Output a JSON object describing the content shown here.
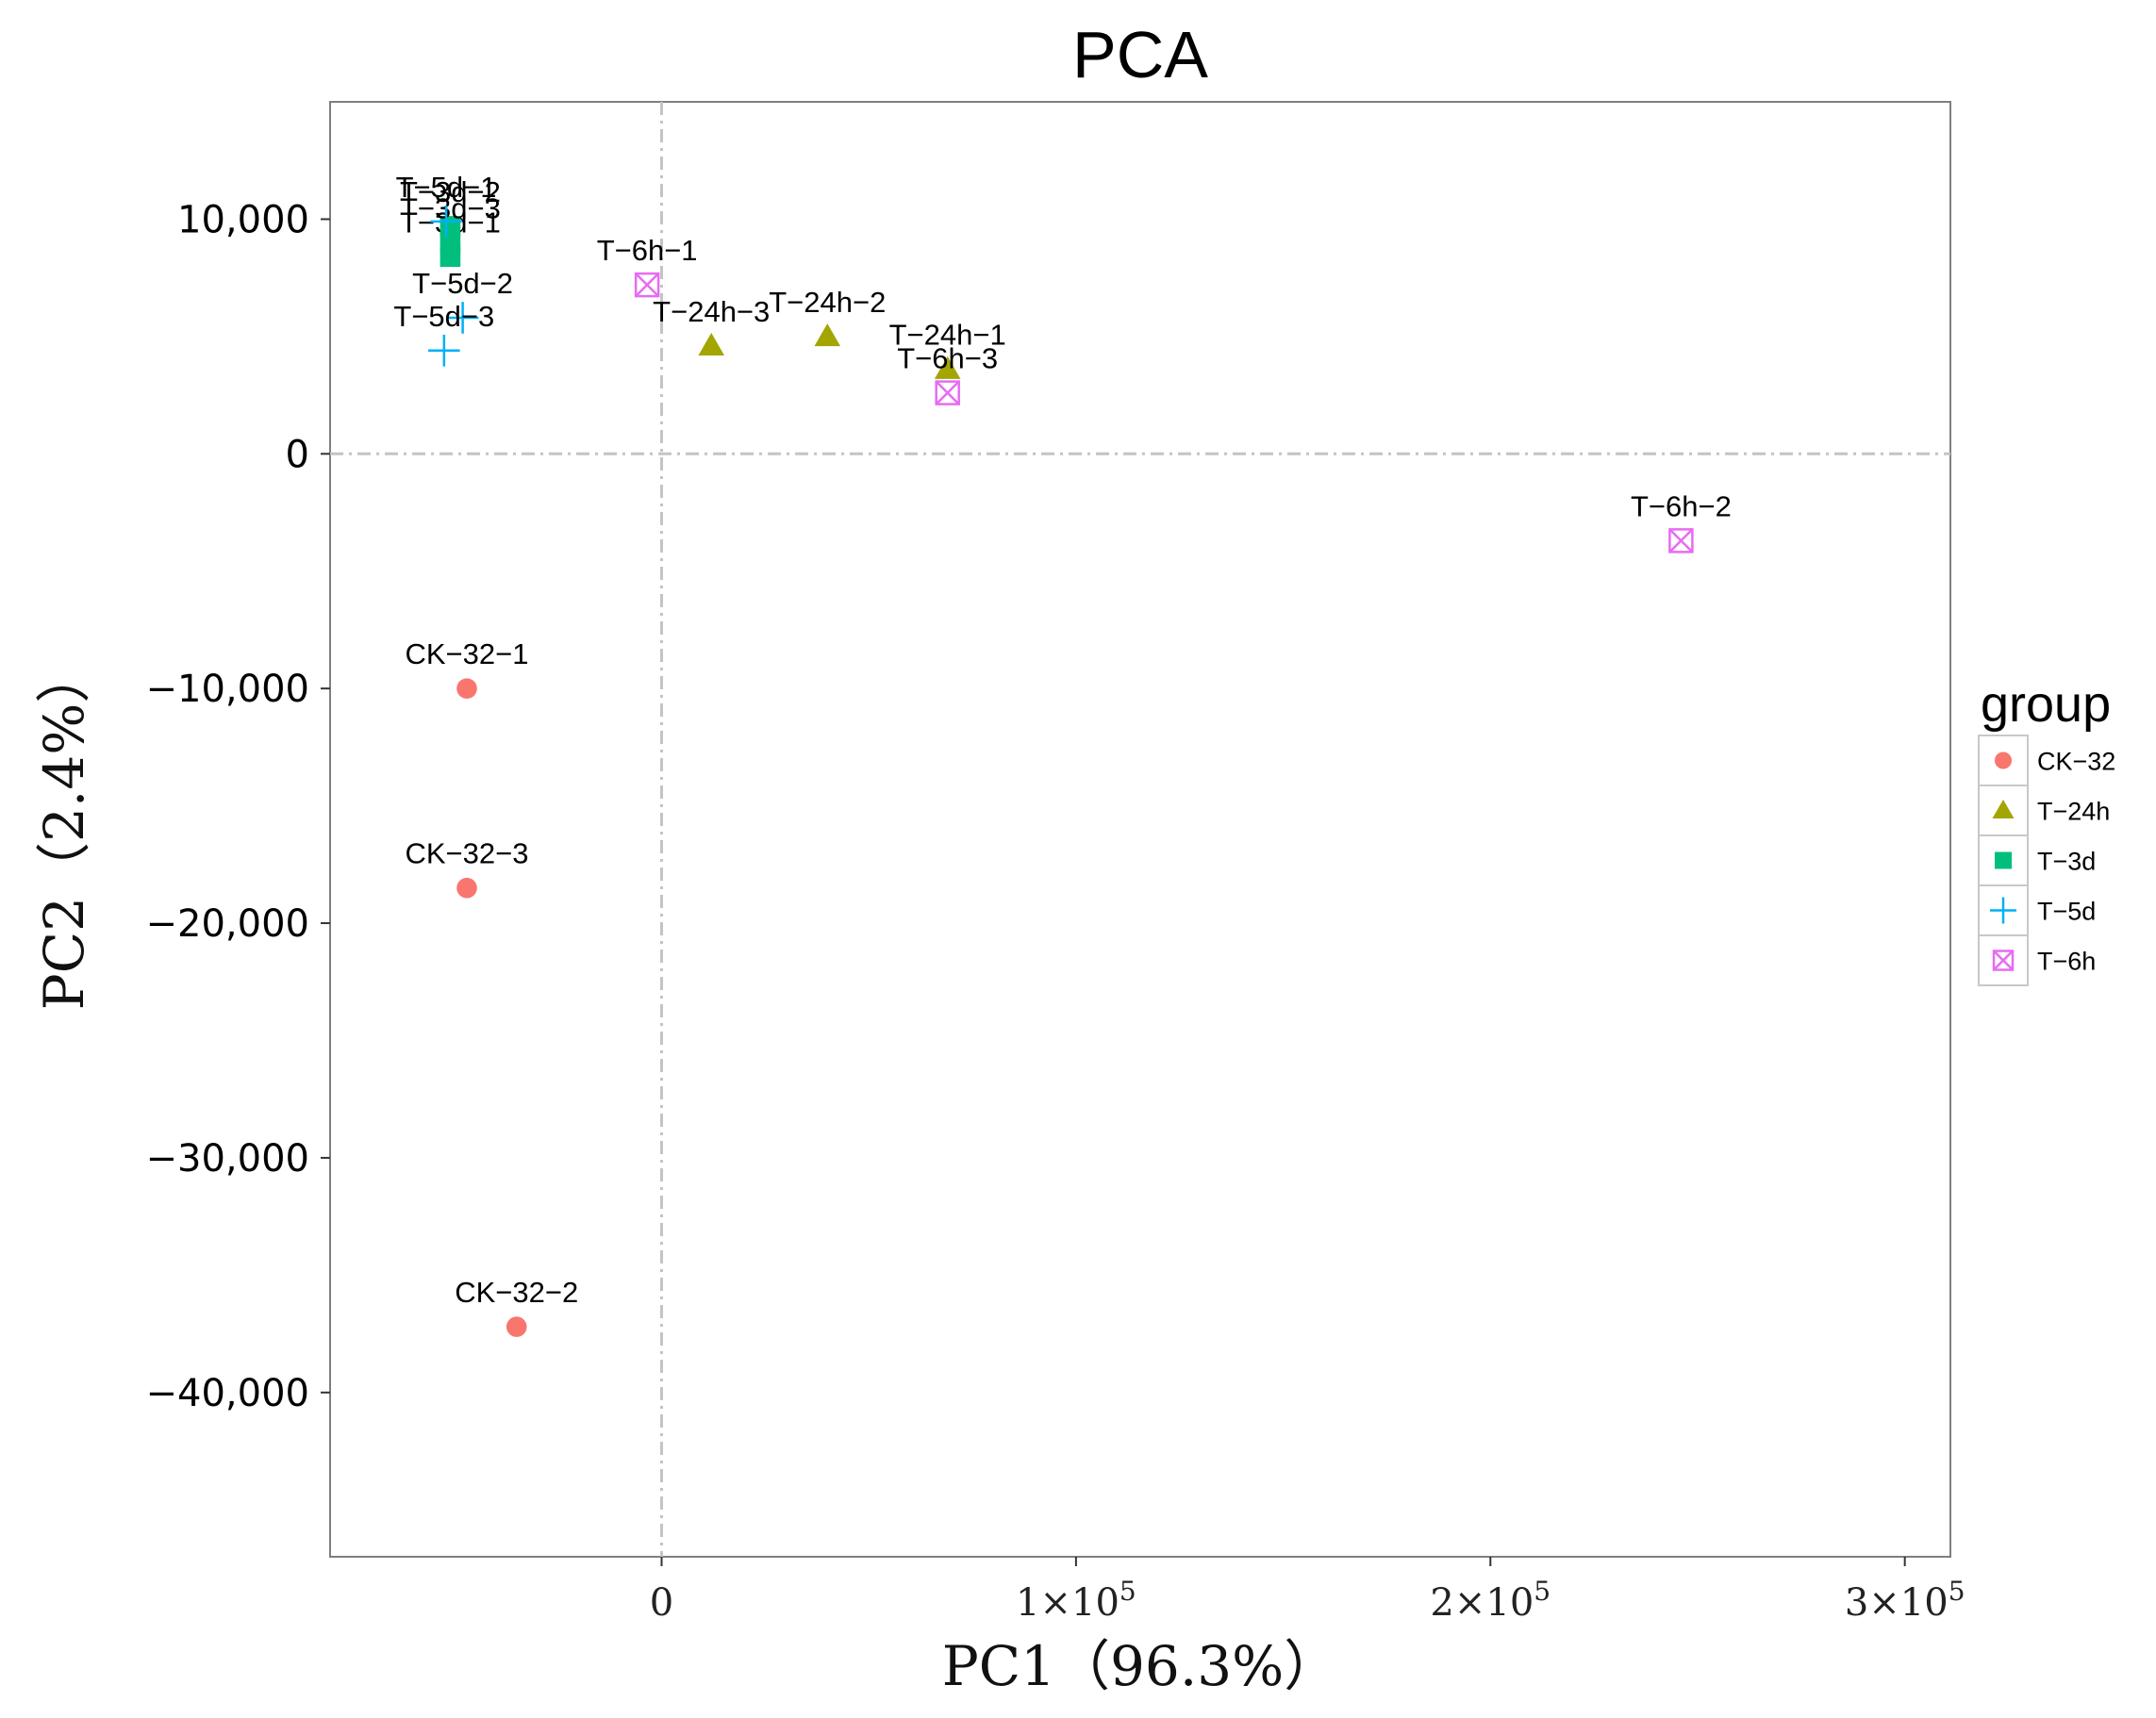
{
  "chart_data": {
    "type": "scatter",
    "title": "PCA",
    "xlabel": "PC1（96.3%）",
    "ylabel": "PC2（2.4%）",
    "xlim": [
      -80000,
      311000
    ],
    "ylim": [
      -47000,
      15000
    ],
    "x_ticks": [
      {
        "value": 0,
        "label": "0",
        "exp": ""
      },
      {
        "value": 100000,
        "label": "1×10",
        "exp": "5"
      },
      {
        "value": 200000,
        "label": "2×10",
        "exp": "5"
      },
      {
        "value": 300000,
        "label": "3×10",
        "exp": "5"
      }
    ],
    "y_ticks": [
      {
        "value": 10000,
        "label": "10,000"
      },
      {
        "value": 0,
        "label": "0"
      },
      {
        "value": -10000,
        "label": "−10,000"
      },
      {
        "value": -20000,
        "label": "−20,000"
      },
      {
        "value": -30000,
        "label": "−30,000"
      },
      {
        "value": -40000,
        "label": "−40,000"
      }
    ],
    "reference_lines": {
      "x": 0,
      "y": 0,
      "style": "dash-dot"
    },
    "grid": false,
    "legend": {
      "title": "group",
      "position": "right"
    },
    "series": [
      {
        "name": "CK-32",
        "color": "#F8766D",
        "shape": "circle",
        "points": [
          {
            "x": -47000,
            "y": -10000,
            "label": "CK−32−1"
          },
          {
            "x": -35000,
            "y": -37200,
            "label": "CK−32−2"
          },
          {
            "x": -47000,
            "y": -18500,
            "label": "CK−32−3"
          }
        ]
      },
      {
        "name": "T-24h",
        "color": "#A3A500",
        "shape": "triangle",
        "points": [
          {
            "x": 69000,
            "y": 3600,
            "label": "T−24h−1"
          },
          {
            "x": 40000,
            "y": 5000,
            "label": "T−24h−2"
          },
          {
            "x": 12000,
            "y": 4600,
            "label": "T−24h−3"
          }
        ]
      },
      {
        "name": "T-3d",
        "color": "#00BF7D",
        "shape": "square",
        "points": [
          {
            "x": -51000,
            "y": 8400,
            "label": "T−3d−1"
          },
          {
            "x": -51000,
            "y": 9700,
            "label": "T−3d−2"
          },
          {
            "x": -51000,
            "y": 9000,
            "label": "T−3d−3"
          }
        ]
      },
      {
        "name": "T-5d",
        "color": "#00B0F6",
        "shape": "plus",
        "points": [
          {
            "x": -52000,
            "y": 9900,
            "label": "T−5d−1"
          },
          {
            "x": -48000,
            "y": 5800,
            "label": "T−5d−2"
          },
          {
            "x": -52500,
            "y": 4400,
            "label": "T−5d−3"
          }
        ]
      },
      {
        "name": "T-6h",
        "color": "#E76BF3",
        "shape": "square-x",
        "points": [
          {
            "x": -3500,
            "y": 7200,
            "label": "T−6h−1"
          },
          {
            "x": 246000,
            "y": -3700,
            "label": "T−6h−2"
          },
          {
            "x": 69000,
            "y": 2600,
            "label": "T−6h−3"
          }
        ]
      }
    ],
    "legend_labels": [
      "CK−32",
      "T−24h",
      "T−3d",
      "T−5d",
      "T−6h"
    ]
  }
}
